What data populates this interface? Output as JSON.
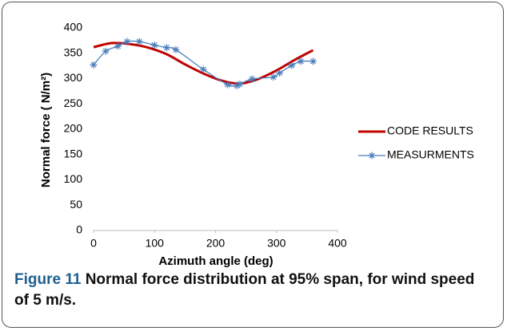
{
  "chart_data": {
    "type": "line",
    "x_label": "Azimuth angle (deg)",
    "y_label": "Normal force ( N/m²)",
    "xlim": [
      0,
      400
    ],
    "xticks": [
      0,
      100,
      200,
      300,
      400
    ],
    "ylim": [
      0,
      400
    ],
    "yticks": [
      0,
      50,
      100,
      150,
      200,
      250,
      300,
      350,
      400
    ],
    "legend": "right",
    "series": [
      {
        "name": "CODE RESULTS",
        "color": "#c00000",
        "marker": "none",
        "x": [
          0,
          30,
          60,
          90,
          120,
          150,
          180,
          210,
          240,
          270,
          300,
          330,
          360
        ],
        "values": [
          362,
          370,
          368,
          361,
          348,
          328,
          310,
          296,
          290,
          299,
          316,
          337,
          356
        ]
      },
      {
        "name": "MEASURMENTS",
        "color": "#4a7ebb",
        "marker": "asterisk",
        "x": [
          0,
          20,
          40,
          55,
          75,
          100,
          120,
          135,
          180,
          220,
          235,
          240,
          260,
          295,
          305,
          325,
          340,
          360
        ],
        "values": [
          327,
          354,
          364,
          373,
          373,
          366,
          361,
          357,
          318,
          288,
          286,
          289,
          299,
          303,
          311,
          326,
          334,
          334
        ]
      }
    ]
  },
  "caption": {
    "label": "Figure 11",
    "text": "Normal force distribution at 95% span, for wind speed of 5 m/s."
  }
}
